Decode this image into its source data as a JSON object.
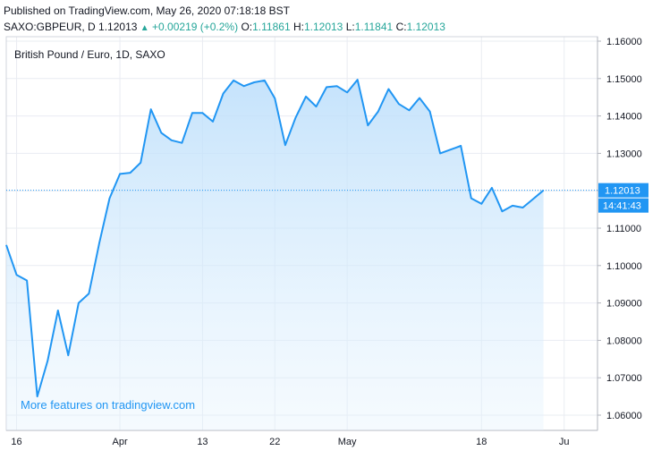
{
  "header": {
    "published": "Published on TradingView.com, May 26, 2020 07:18:18 BST",
    "symbol": "SAXO:GBPEUR, D",
    "last": "1.12013",
    "change": "+0.00219 (+0.2%)",
    "o_label": "O:",
    "o_value": "1.11861",
    "h_label": "H:",
    "h_value": "1.12013",
    "l_label": "L:",
    "l_value": "1.11841",
    "c_label": "C:",
    "c_value": "1.12013"
  },
  "chart_title": "British Pound / Euro, 1D, SAXO",
  "promo": "More features on tradingview.com",
  "price_tag": {
    "price": "1.12013",
    "countdown": "14:41:43"
  },
  "colors": {
    "line": "#2196f3",
    "fill_top": "#bbdefb",
    "grid": "#e9ecf2",
    "tag_bg": "#2196f3"
  },
  "chart_data": {
    "type": "area",
    "title": "British Pound / Euro, 1D, SAXO",
    "ylim": [
      1.06,
      1.16
    ],
    "y_ticks": [
      "1.16000",
      "1.15000",
      "1.14000",
      "1.13000",
      "1.12000",
      "1.11000",
      "1.10000",
      "1.09000",
      "1.08000",
      "1.07000",
      "1.06000"
    ],
    "y_tick_values": [
      1.16,
      1.15,
      1.14,
      1.13,
      1.12,
      1.11,
      1.1,
      1.09,
      1.08,
      1.07,
      1.06
    ],
    "x_ticks": [
      "16",
      "Apr",
      "13",
      "22",
      "May",
      "18",
      "Ju"
    ],
    "x_tick_index": [
      1,
      11,
      19,
      26,
      33,
      46,
      54
    ],
    "last_value": 1.12013,
    "series": [
      {
        "values": [
          1.1055,
          1.0975,
          1.096,
          1.065,
          1.0745,
          1.088,
          1.076,
          1.09,
          1.0925,
          1.106,
          1.118,
          1.1245,
          1.1248,
          1.1275,
          1.1418,
          1.1355,
          1.1335,
          1.1328,
          1.1408,
          1.1408,
          1.1385,
          1.146,
          1.1495,
          1.148,
          1.149,
          1.1495,
          1.1447,
          1.1322,
          1.1395,
          1.1452,
          1.1425,
          1.1477,
          1.148,
          1.1463,
          1.1497,
          1.1375,
          1.1412,
          1.1472,
          1.1432,
          1.1415,
          1.1448,
          1.1412,
          1.13,
          1.131,
          1.132,
          1.118,
          1.1165,
          1.1208,
          1.1145,
          1.116,
          1.1155,
          1.1178,
          1.12013
        ]
      }
    ]
  }
}
